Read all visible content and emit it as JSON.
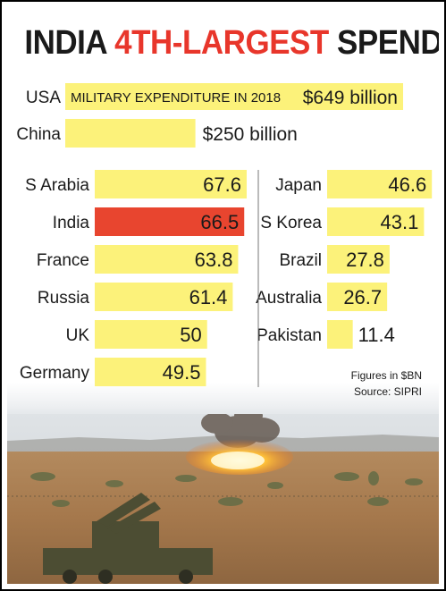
{
  "title": {
    "part1": "INDIA ",
    "highlight": "4TH-LARGEST",
    "part2": " SPENDER"
  },
  "colors": {
    "bar": "#fcf27a",
    "highlight_bar": "#e8452f",
    "title_highlight": "#e8362b",
    "text": "#1a1a1a"
  },
  "chart_data": {
    "type": "bar",
    "orientation": "horizontal",
    "unit": "$BN",
    "top_bars": [
      {
        "category": "USA",
        "value": 649,
        "label": "$649 billion",
        "inner_label": "MILITARY EXPENDITURE IN 2018"
      },
      {
        "category": "China",
        "value": 250,
        "label": "$250 billion"
      }
    ],
    "left_column": [
      {
        "category": "S Arabia",
        "value": 67.6
      },
      {
        "category": "India",
        "value": 66.5,
        "highlight": true
      },
      {
        "category": "France",
        "value": 63.8
      },
      {
        "category": "Russia",
        "value": 61.4
      },
      {
        "category": "UK",
        "value": 50,
        "label": "50"
      },
      {
        "category": "Germany",
        "value": 49.5
      }
    ],
    "right_column": [
      {
        "category": "Japan",
        "value": 46.6
      },
      {
        "category": "S Korea",
        "value": 43.1
      },
      {
        "category": "Brazil",
        "value": 27.8
      },
      {
        "category": "Australia",
        "value": 26.7
      },
      {
        "category": "Pakistan",
        "value": 11.4
      }
    ]
  },
  "notes": {
    "figures": "Figures in $BN",
    "source": "Source: SIPRI"
  }
}
